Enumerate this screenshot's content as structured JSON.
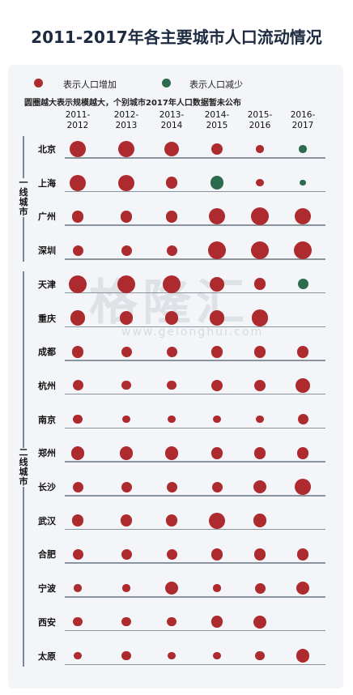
{
  "title": "2011-2017年各主要城市人口流动情况",
  "legend": {
    "increase_label": "表示人口增加",
    "decrease_label": "表示人口减少",
    "increase_color": "#ad2b2f",
    "decrease_color": "#2d6b4f"
  },
  "note": "圆圈越大表示规模越大，个别城市2017年人口数据暂未公布",
  "watermark": {
    "text": "格隆汇",
    "url": "www.gelonghui.com"
  },
  "groups": [
    {
      "label": "一线城市",
      "first_row": 0,
      "last_row": 3
    },
    {
      "label": "二线城市",
      "first_row": 4,
      "last_row": 15
    }
  ],
  "chart_data": {
    "type": "bubble-matrix",
    "title": "2011-2017年各主要城市人口流动情况",
    "size_scale": "relative (1 = smallest, 5 = largest)",
    "years": [
      "2011-2012",
      "2012-2013",
      "2013-2014",
      "2014-2015",
      "2015-2016",
      "2016-2017"
    ],
    "rows": [
      {
        "city": "北京",
        "values": [
          4.5,
          4.5,
          4,
          3,
          1.5,
          1.5
        ],
        "direction": [
          "up",
          "up",
          "up",
          "up",
          "up",
          "down"
        ]
      },
      {
        "city": "上海",
        "values": [
          4.5,
          4.5,
          3,
          3.5,
          1.5,
          1
        ],
        "direction": [
          "up",
          "up",
          "up",
          "down",
          "up",
          "down"
        ]
      },
      {
        "city": "广州",
        "values": [
          3,
          3,
          3,
          4.5,
          5,
          4.5
        ],
        "direction": [
          "up",
          "up",
          "up",
          "up",
          "up",
          "up"
        ]
      },
      {
        "city": "深圳",
        "values": [
          2.5,
          2.5,
          2.5,
          5,
          5,
          5
        ],
        "direction": [
          "up",
          "up",
          "up",
          "up",
          "up",
          "up"
        ]
      },
      {
        "city": "天津",
        "values": [
          5,
          5,
          5,
          4,
          3,
          2.5
        ],
        "direction": [
          "up",
          "up",
          "up",
          "up",
          "up",
          "down"
        ]
      },
      {
        "city": "重庆",
        "values": [
          4,
          3.5,
          3.5,
          4,
          4.5,
          0
        ],
        "direction": [
          "up",
          "up",
          "up",
          "up",
          "up",
          "none"
        ]
      },
      {
        "city": "成都",
        "values": [
          3,
          2.5,
          2.5,
          3,
          3,
          3
        ],
        "direction": [
          "up",
          "up",
          "up",
          "up",
          "up",
          "up"
        ]
      },
      {
        "city": "杭州",
        "values": [
          2.5,
          2,
          2,
          3,
          3,
          4
        ],
        "direction": [
          "up",
          "up",
          "up",
          "up",
          "up",
          "up"
        ]
      },
      {
        "city": "南京",
        "values": [
          2,
          1.5,
          1.5,
          1.5,
          1.5,
          2.5
        ],
        "direction": [
          "up",
          "up",
          "up",
          "up",
          "up",
          "up"
        ]
      },
      {
        "city": "郑州",
        "values": [
          3.5,
          3.5,
          3.5,
          3,
          3,
          3
        ],
        "direction": [
          "up",
          "up",
          "up",
          "up",
          "up",
          "up"
        ]
      },
      {
        "city": "长沙",
        "values": [
          2.5,
          2.5,
          2.5,
          2.5,
          3.5,
          4.5
        ],
        "direction": [
          "up",
          "up",
          "up",
          "up",
          "up",
          "up"
        ]
      },
      {
        "city": "武汉",
        "values": [
          3,
          3,
          3,
          4.5,
          3.5,
          0
        ],
        "direction": [
          "up",
          "up",
          "up",
          "up",
          "up",
          "none"
        ]
      },
      {
        "city": "合肥",
        "values": [
          2.5,
          2.5,
          2.5,
          3,
          3,
          3
        ],
        "direction": [
          "up",
          "up",
          "up",
          "up",
          "up",
          "up"
        ]
      },
      {
        "city": "宁波",
        "values": [
          1.5,
          1.5,
          3.5,
          1.5,
          2.5,
          3.5
        ],
        "direction": [
          "up",
          "up",
          "up",
          "up",
          "up",
          "up"
        ]
      },
      {
        "city": "西安",
        "values": [
          2,
          2,
          2,
          3,
          3.5,
          0
        ],
        "direction": [
          "up",
          "up",
          "up",
          "up",
          "up",
          "none"
        ]
      },
      {
        "city": "太原",
        "values": [
          1.5,
          2,
          1.5,
          1.5,
          2,
          3.5
        ],
        "direction": [
          "up",
          "up",
          "up",
          "up",
          "up",
          "up"
        ]
      }
    ]
  }
}
